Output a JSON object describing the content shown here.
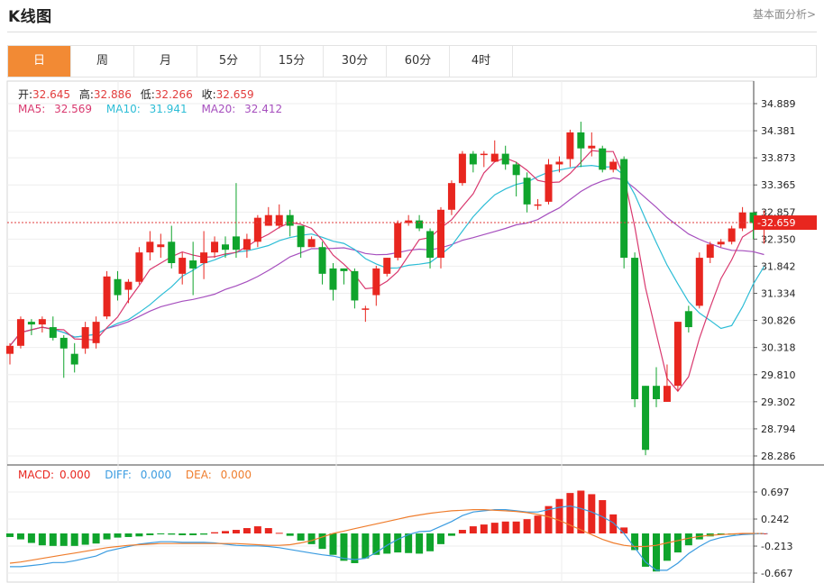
{
  "header": {
    "title": "K线图",
    "fundamental_link": "基本面分析>"
  },
  "tabs": [
    {
      "label": "日",
      "active": true
    },
    {
      "label": "周",
      "active": false
    },
    {
      "label": "月",
      "active": false
    },
    {
      "label": "5分",
      "active": false
    },
    {
      "label": "15分",
      "active": false
    },
    {
      "label": "30分",
      "active": false
    },
    {
      "label": "60分",
      "active": false
    },
    {
      "label": "4时",
      "active": false
    }
  ],
  "info": {
    "open_label": "开:",
    "open": "32.645",
    "high_label": "高:",
    "high": "32.886",
    "low_label": "低:",
    "low": "32.266",
    "close_label": "收:",
    "close": "32.659",
    "ma5_label": "MA5:",
    "ma5": "32.569",
    "ma10_label": "MA10:",
    "ma10": "31.941",
    "ma20_label": "MA20:",
    "ma20": "32.412",
    "macd_label": "MACD:",
    "macd": "0.000",
    "diff_label": "DIFF:",
    "diff": "0.000",
    "dea_label": "DEA:",
    "dea": "0.000"
  },
  "colors": {
    "up": "#e8261f",
    "down": "#0fa42c",
    "ma5": "#d9396f",
    "ma10": "#2dbdd6",
    "ma20": "#a64fbe",
    "diff": "#3a9be0",
    "dea": "#ef7d2d",
    "active_tab": "#f28a34"
  },
  "chart_data": {
    "type": "candlestick",
    "price_axis": {
      "ticks": [
        "34.889",
        "34.381",
        "33.873",
        "33.365",
        "32.857",
        "32.350",
        "31.842",
        "31.334",
        "30.826",
        "30.318",
        "29.810",
        "29.302",
        "28.794",
        "28.286"
      ],
      "min": 28.286,
      "max": 34.889
    },
    "last_price_label": "32.659",
    "last_price": 32.659,
    "macd_axis": {
      "ticks": [
        "0.697",
        "0.242",
        "-0.213",
        "-0.667"
      ],
      "min": -0.667,
      "max": 0.697
    },
    "candles": [
      [
        30.2,
        30.35,
        30.0,
        30.4
      ],
      [
        30.35,
        30.85,
        30.3,
        30.9
      ],
      [
        30.8,
        30.75,
        30.55,
        30.85
      ],
      [
        30.75,
        30.85,
        30.6,
        30.9
      ],
      [
        30.7,
        30.5,
        30.45,
        30.9
      ],
      [
        30.5,
        30.3,
        29.75,
        30.55
      ],
      [
        30.2,
        30.0,
        29.85,
        30.4
      ],
      [
        30.3,
        30.7,
        30.2,
        30.8
      ],
      [
        30.4,
        30.8,
        30.3,
        30.9
      ],
      [
        30.9,
        31.65,
        30.85,
        31.75
      ],
      [
        31.6,
        31.3,
        31.2,
        31.75
      ],
      [
        31.4,
        31.55,
        31.15,
        31.6
      ],
      [
        31.55,
        32.1,
        31.5,
        32.2
      ],
      [
        32.1,
        32.3,
        31.95,
        32.5
      ],
      [
        32.2,
        32.25,
        32.0,
        32.45
      ],
      [
        32.3,
        31.9,
        31.8,
        32.6
      ],
      [
        31.7,
        32.0,
        31.5,
        32.1
      ],
      [
        31.95,
        31.8,
        31.3,
        32.3
      ],
      [
        31.9,
        32.1,
        31.6,
        32.5
      ],
      [
        32.1,
        32.3,
        32.0,
        32.4
      ],
      [
        32.25,
        32.15,
        32.0,
        32.4
      ],
      [
        32.4,
        32.15,
        32.0,
        33.4
      ],
      [
        32.15,
        32.35,
        32.0,
        32.45
      ],
      [
        32.3,
        32.75,
        32.2,
        32.8
      ],
      [
        32.6,
        32.8,
        32.6,
        32.95
      ],
      [
        32.6,
        32.8,
        32.55,
        33.0
      ],
      [
        32.8,
        32.6,
        32.4,
        32.9
      ],
      [
        32.6,
        32.2,
        32.0,
        32.6
      ],
      [
        32.2,
        32.35,
        32.2,
        32.4
      ],
      [
        32.2,
        31.7,
        31.5,
        32.3
      ],
      [
        31.8,
        31.4,
        31.2,
        31.9
      ],
      [
        31.8,
        31.75,
        31.5,
        31.8
      ],
      [
        31.75,
        31.2,
        31.05,
        31.8
      ],
      [
        31.05,
        31.05,
        30.8,
        31.1
      ],
      [
        31.3,
        31.8,
        31.1,
        31.85
      ],
      [
        31.7,
        32.0,
        31.65,
        32.0
      ],
      [
        32.0,
        32.65,
        31.95,
        32.7
      ],
      [
        32.65,
        32.7,
        32.6,
        32.8
      ],
      [
        32.7,
        32.55,
        32.5,
        32.8
      ],
      [
        32.5,
        32.0,
        31.8,
        32.55
      ],
      [
        32.0,
        32.9,
        31.8,
        32.95
      ],
      [
        32.9,
        33.4,
        32.8,
        33.45
      ],
      [
        33.4,
        33.95,
        33.35,
        34.0
      ],
      [
        33.95,
        33.75,
        33.6,
        34.0
      ],
      [
        33.95,
        33.95,
        33.7,
        34.0
      ],
      [
        33.8,
        33.95,
        33.85,
        34.2
      ],
      [
        33.95,
        33.75,
        33.65,
        34.1
      ],
      [
        33.75,
        33.55,
        33.15,
        33.8
      ],
      [
        33.5,
        33.0,
        32.85,
        33.6
      ],
      [
        33.0,
        33.0,
        32.9,
        33.1
      ],
      [
        33.05,
        33.75,
        33.0,
        33.85
      ],
      [
        33.75,
        33.8,
        33.6,
        33.9
      ],
      [
        33.85,
        34.35,
        33.7,
        34.4
      ],
      [
        34.35,
        34.05,
        33.7,
        34.55
      ],
      [
        34.05,
        34.1,
        33.9,
        34.35
      ],
      [
        34.05,
        33.65,
        33.6,
        34.1
      ],
      [
        33.65,
        33.8,
        33.6,
        33.85
      ],
      [
        33.85,
        32.0,
        31.8,
        33.9
      ],
      [
        32.0,
        29.35,
        29.2,
        32.1
      ],
      [
        29.6,
        28.4,
        28.3,
        29.6
      ],
      [
        29.6,
        29.35,
        29.2,
        29.95
      ],
      [
        29.3,
        29.6,
        29.3,
        30.0
      ],
      [
        29.6,
        30.8,
        29.5,
        30.8
      ],
      [
        31.0,
        30.7,
        30.6,
        31.1
      ],
      [
        31.1,
        32.0,
        31.05,
        32.1
      ],
      [
        32.0,
        32.25,
        31.9,
        32.3
      ],
      [
        32.25,
        32.3,
        32.2,
        32.35
      ],
      [
        32.3,
        32.55,
        32.25,
        32.6
      ],
      [
        32.55,
        32.85,
        32.5,
        32.95
      ],
      [
        32.85,
        32.65,
        32.35,
        32.85
      ],
      [
        32.645,
        32.659,
        32.266,
        32.886
      ]
    ],
    "macd_hist": [
      -0.06,
      -0.1,
      -0.16,
      -0.2,
      -0.21,
      -0.21,
      -0.21,
      -0.19,
      -0.17,
      -0.1,
      -0.07,
      -0.06,
      -0.05,
      -0.03,
      -0.01,
      -0.02,
      -0.03,
      -0.03,
      -0.02,
      0.02,
      0.04,
      0.06,
      0.09,
      0.12,
      0.09,
      0.01,
      -0.04,
      -0.12,
      -0.18,
      -0.26,
      -0.36,
      -0.46,
      -0.5,
      -0.42,
      -0.36,
      -0.34,
      -0.32,
      -0.33,
      -0.34,
      -0.3,
      -0.18,
      -0.04,
      0.06,
      0.12,
      0.15,
      0.18,
      0.2,
      0.2,
      0.24,
      0.3,
      0.46,
      0.58,
      0.68,
      0.72,
      0.66,
      0.56,
      0.32,
      0.1,
      -0.28,
      -0.56,
      -0.64,
      -0.46,
      -0.32,
      -0.2,
      -0.1,
      -0.05,
      -0.02,
      -0.02,
      0.0,
      0.0,
      0.0
    ],
    "diff": [
      -0.56,
      -0.56,
      -0.54,
      -0.52,
      -0.49,
      -0.49,
      -0.46,
      -0.42,
      -0.38,
      -0.3,
      -0.26,
      -0.22,
      -0.18,
      -0.16,
      -0.14,
      -0.14,
      -0.15,
      -0.15,
      -0.15,
      -0.16,
      -0.18,
      -0.2,
      -0.21,
      -0.21,
      -0.22,
      -0.24,
      -0.27,
      -0.3,
      -0.33,
      -0.36,
      -0.38,
      -0.42,
      -0.44,
      -0.42,
      -0.32,
      -0.2,
      -0.1,
      -0.02,
      0.03,
      0.04,
      0.12,
      0.2,
      0.3,
      0.36,
      0.38,
      0.4,
      0.4,
      0.38,
      0.36,
      0.36,
      0.4,
      0.44,
      0.46,
      0.42,
      0.36,
      0.28,
      0.18,
      0.0,
      -0.24,
      -0.48,
      -0.62,
      -0.62,
      -0.5,
      -0.34,
      -0.22,
      -0.12,
      -0.07,
      -0.04,
      -0.02,
      -0.01,
      0.0
    ],
    "dea": [
      -0.5,
      -0.48,
      -0.45,
      -0.42,
      -0.39,
      -0.36,
      -0.33,
      -0.3,
      -0.27,
      -0.24,
      -0.22,
      -0.2,
      -0.19,
      -0.18,
      -0.17,
      -0.17,
      -0.17,
      -0.17,
      -0.17,
      -0.17,
      -0.17,
      -0.17,
      -0.18,
      -0.19,
      -0.2,
      -0.2,
      -0.19,
      -0.16,
      -0.12,
      -0.06,
      0.0,
      0.04,
      0.08,
      0.12,
      0.16,
      0.2,
      0.24,
      0.28,
      0.31,
      0.34,
      0.36,
      0.38,
      0.39,
      0.4,
      0.4,
      0.39,
      0.38,
      0.37,
      0.35,
      0.32,
      0.28,
      0.22,
      0.14,
      0.06,
      -0.02,
      -0.1,
      -0.16,
      -0.2,
      -0.22,
      -0.22,
      -0.2,
      -0.16,
      -0.12,
      -0.08,
      -0.05,
      -0.03,
      -0.02,
      -0.01,
      0.0,
      0.0,
      0.0
    ]
  }
}
